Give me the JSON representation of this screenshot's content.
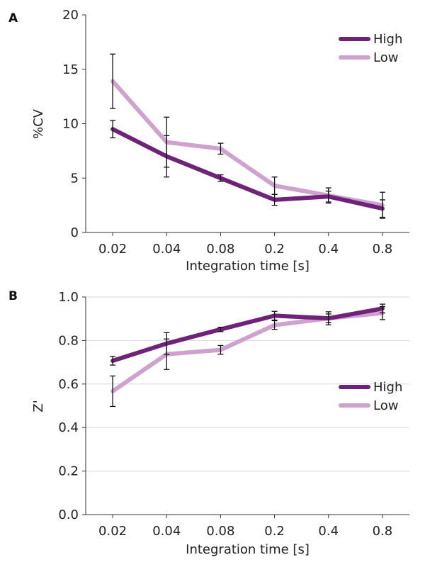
{
  "chart_data": [
    {
      "panel": "A",
      "type": "line",
      "categories": [
        "0.02",
        "0.04",
        "0.08",
        "0.2",
        "0.4",
        "0.8"
      ],
      "xlabel": "Integration time [s]",
      "ylabel": "%CV",
      "ylim": [
        0,
        20
      ],
      "yticks": [
        "0",
        "5",
        "10",
        "15",
        "20"
      ],
      "ytick_values": [
        0,
        5,
        10,
        15,
        20
      ],
      "grid": false,
      "legend_position": "top-right",
      "series": [
        {
          "name": "High",
          "color": "#6e2278",
          "values": [
            9.5,
            7.0,
            5.0,
            3.0,
            3.3,
            2.2
          ],
          "errors": [
            0.8,
            1.9,
            0.3,
            0.5,
            0.5,
            0.8
          ]
        },
        {
          "name": "Low",
          "color": "#cfa2cd",
          "values": [
            13.9,
            8.3,
            7.7,
            4.3,
            3.4,
            2.5
          ],
          "errors": [
            2.5,
            2.3,
            0.5,
            0.8,
            0.7,
            1.2
          ]
        }
      ]
    },
    {
      "panel": "B",
      "type": "line",
      "categories": [
        "0.02",
        "0.04",
        "0.08",
        "0.2",
        "0.4",
        "0.8"
      ],
      "xlabel": "Integration time [s]",
      "ylabel": "Z'",
      "ylim": [
        0,
        1
      ],
      "yticks": [
        "0.0",
        "0.2",
        "0.4",
        "0.6",
        "0.8",
        "1.0"
      ],
      "ytick_values": [
        0,
        0.2,
        0.4,
        0.6,
        0.8,
        1.0
      ],
      "grid": true,
      "legend_position": "center-right",
      "series": [
        {
          "name": "High",
          "color": "#6e2278",
          "values": [
            0.707,
            0.786,
            0.851,
            0.914,
            0.902,
            0.947
          ],
          "errors": [
            0.02,
            0.05,
            0.01,
            0.02,
            0.02,
            0.02
          ]
        },
        {
          "name": "Low",
          "color": "#cfa2cd",
          "values": [
            0.567,
            0.737,
            0.757,
            0.871,
            0.902,
            0.926
          ],
          "errors": [
            0.07,
            0.07,
            0.02,
            0.02,
            0.03,
            0.03
          ]
        }
      ]
    }
  ]
}
